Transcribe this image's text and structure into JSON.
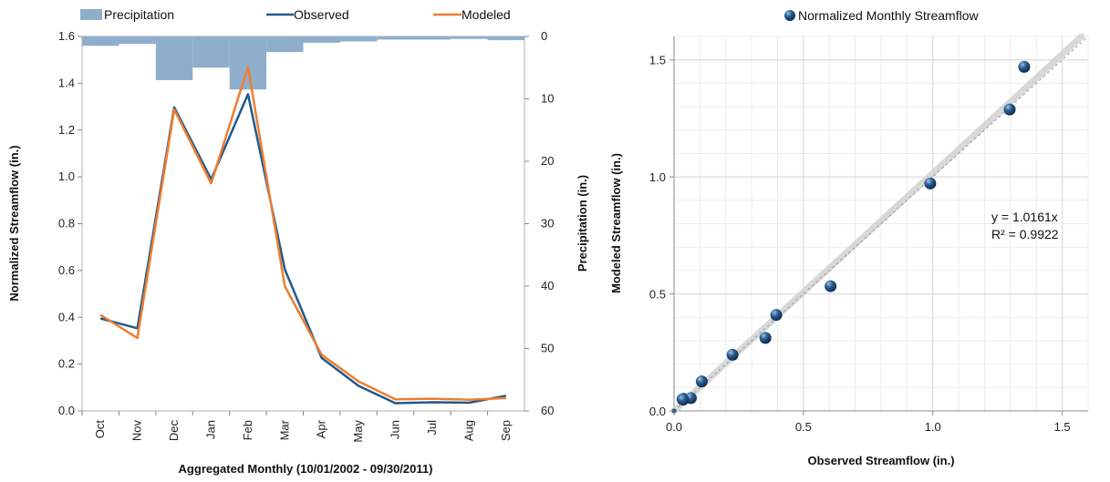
{
  "chart_data": [
    {
      "type": "line",
      "categories": [
        "Oct",
        "Nov",
        "Dec",
        "Jan",
        "Feb",
        "Mar",
        "Apr",
        "May",
        "Jun",
        "Jul",
        "Aug",
        "Sep"
      ],
      "series": [
        {
          "name": "Observed",
          "axis": "left",
          "values": [
            0.395,
            0.353,
            1.297,
            0.99,
            1.353,
            0.605,
            0.226,
            0.107,
            0.033,
            0.037,
            0.035,
            0.065
          ],
          "color": "#1f5a8c"
        },
        {
          "name": "Modeled",
          "axis": "left",
          "values": [
            0.41,
            0.312,
            1.288,
            0.972,
            1.47,
            0.533,
            0.24,
            0.126,
            0.05,
            0.052,
            0.048,
            0.055
          ],
          "color": "#ee7d31"
        },
        {
          "name": "Precipitation",
          "axis": "right",
          "kind": "bar",
          "inverted": true,
          "values": [
            1.5,
            1.2,
            7,
            5,
            8.5,
            2.5,
            1,
            0.8,
            0.5,
            0.5,
            0.4,
            0.6
          ],
          "color": "#8faecb"
        }
      ],
      "xlabel": "Aggregated Monthly (10/01/2002 - 09/30/2011)",
      "ylabel": "Normalized Streamflow (in.)",
      "y2label": "Precipitation (in.)",
      "ylim": [
        0,
        1.6
      ],
      "yticks": [
        "0.0",
        "0.2",
        "0.4",
        "0.6",
        "0.8",
        "1.0",
        "1.2",
        "1.4",
        "1.6"
      ],
      "y2lim": [
        0,
        60
      ],
      "y2ticks": [
        "0",
        "10",
        "20",
        "30",
        "40",
        "50",
        "60"
      ],
      "legend": "top",
      "grid": false
    },
    {
      "type": "scatter",
      "title": "Normalized Monthly Streamflow",
      "series": [
        {
          "name": "Normalized Monthly Streamflow",
          "x": [
            0.033,
            0.037,
            0.065,
            0.035,
            0.107,
            0.226,
            0.353,
            0.395,
            0.605,
            0.99,
            1.297,
            1.353
          ],
          "y": [
            0.05,
            0.052,
            0.055,
            0.048,
            0.126,
            0.24,
            0.312,
            0.41,
            0.533,
            0.972,
            1.288,
            1.47
          ],
          "color": "#1f4e79"
        }
      ],
      "xlabel": "Observed Streamflow (in.)",
      "ylabel": "Modeled Streamflow (in.)",
      "xlim": [
        0,
        1.6
      ],
      "ylim": [
        0,
        1.6
      ],
      "xticks": [
        "0.0",
        "0.5",
        "1.0",
        "1.5"
      ],
      "yticks": [
        "0.0",
        "0.5",
        "1.0",
        "1.5"
      ],
      "trendline": {
        "slope": 1.0161,
        "equation": "y = 1.0161x",
        "r2": "R² = 0.9922"
      },
      "reference_line": "1:1",
      "grid": true,
      "legend": "top-center"
    }
  ]
}
